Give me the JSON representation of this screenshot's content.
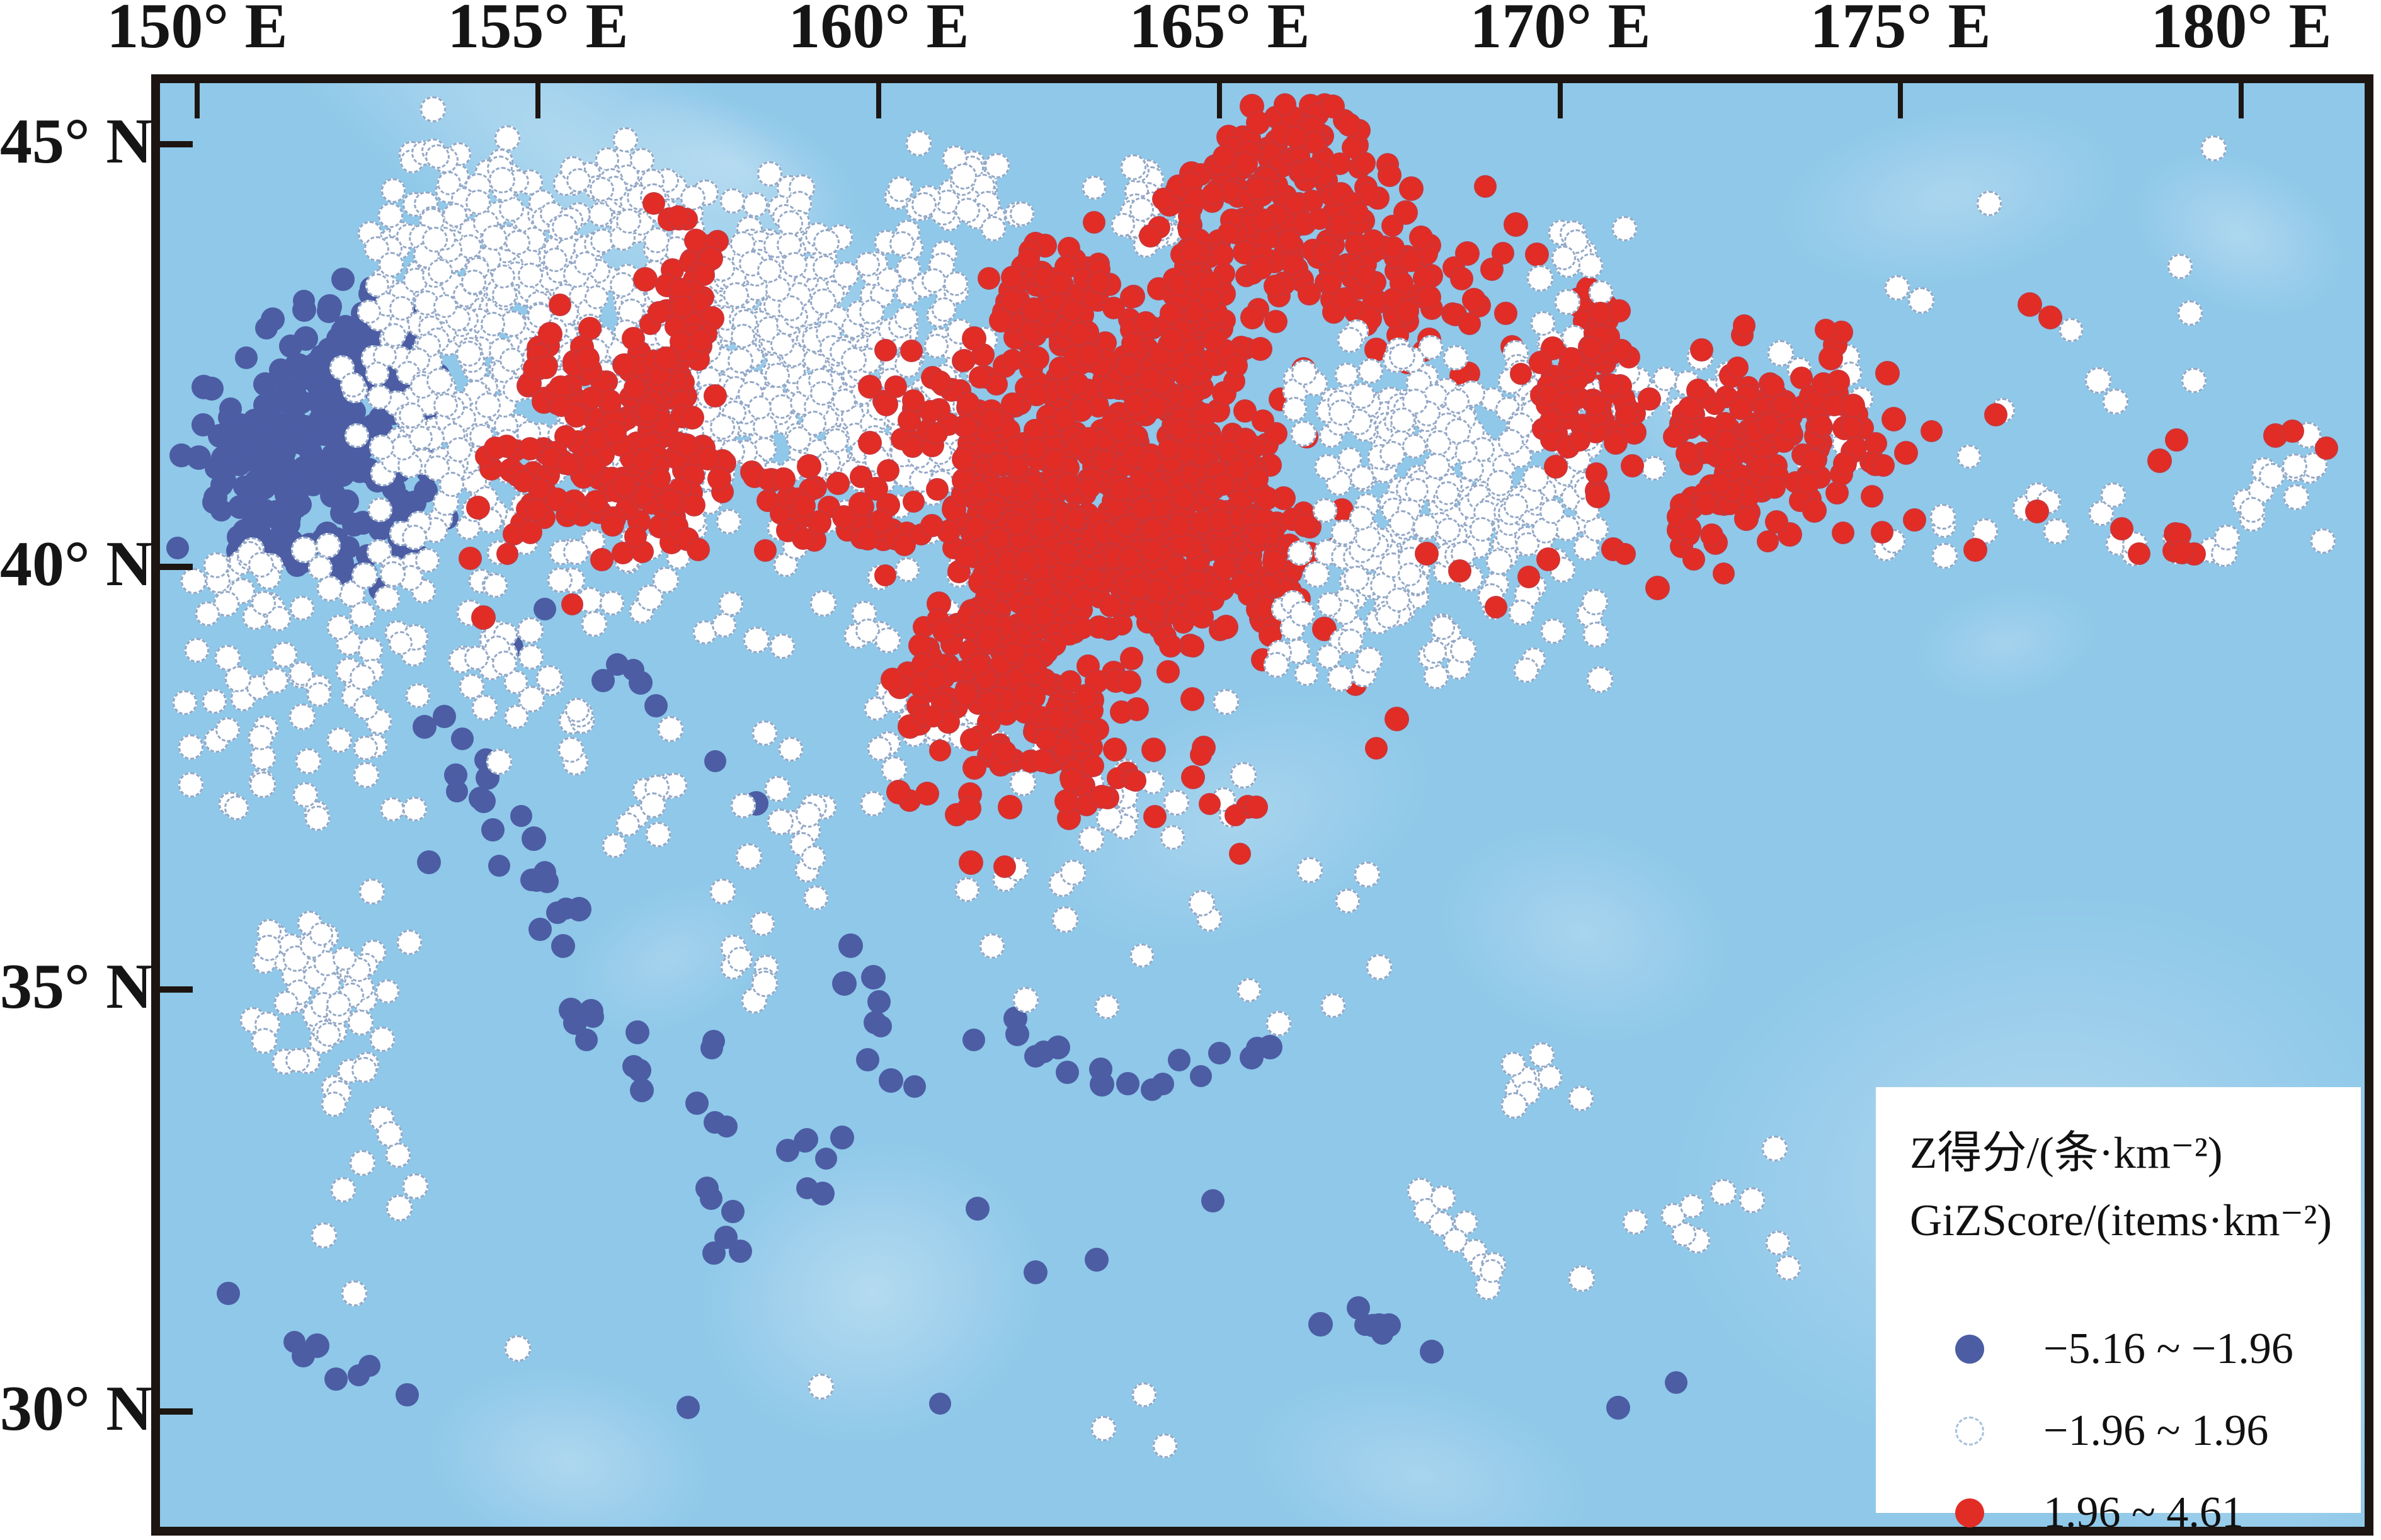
{
  "chart_data": {
    "type": "scatter",
    "subtype": "geographic-hotspot-map",
    "title": "",
    "x_axis": {
      "ticks": [
        150,
        155,
        160,
        165,
        170,
        175,
        180
      ],
      "tick_labels": [
        "150° E",
        "155° E",
        "160° E",
        "165° E",
        "170° E",
        "175° E",
        "180° E"
      ],
      "range": [
        149.45,
        181.81
      ],
      "position": "top",
      "grid": false
    },
    "y_axis": {
      "ticks": [
        45,
        40,
        35,
        30
      ],
      "tick_labels": [
        "45° N",
        "40° N",
        "35° N",
        "30° N"
      ],
      "range": [
        28.64,
        45.72
      ],
      "position": "left",
      "grid": false
    },
    "legend": {
      "position": "bottom-right",
      "title_lines": [
        "Z得分/(条·km⁻²)",
        "GiZScore/(items·km⁻²)"
      ],
      "entries": [
        {
          "category": "cold",
          "label": "−5.16 ~ −1.96",
          "color": "#4c5da4",
          "marker": "filled-circle"
        },
        {
          "category": "neutral",
          "label": "−1.96 ~ 1.96",
          "color": "#ffffff",
          "marker": "dashed-outline-circle"
        },
        {
          "category": "hot",
          "label": "1.96 ~ 4.61",
          "color": "#e12d26",
          "marker": "filled-circle"
        }
      ]
    },
    "layers": [
      {
        "category": "cold",
        "clusters": [
          [
            151.95,
            41.95,
            0.75,
            0.6,
            130
          ],
          [
            151.1,
            41.15,
            0.55,
            0.5,
            60
          ],
          [
            152.7,
            42.6,
            0.45,
            0.35,
            40
          ],
          [
            152.95,
            41.4,
            0.4,
            0.45,
            40
          ],
          [
            151.0,
            40.25,
            0.45,
            0.3,
            18
          ],
          [
            152.3,
            40.05,
            0.35,
            0.25,
            12
          ],
          [
            150.45,
            41.0,
            0.25,
            0.4,
            10
          ],
          [
            167.35,
            30.95,
            0.5,
            0.2,
            8
          ],
          [
            158.95,
            33.1,
            0.3,
            0.35,
            7
          ]
        ],
        "lines": [
          [
            153.6,
            38.2,
            154.35,
            37.2,
            9,
            0.15
          ],
          [
            154.6,
            36.9,
            155.4,
            35.3,
            13,
            0.2
          ],
          [
            155.5,
            34.9,
            156.4,
            33.9,
            9,
            0.18
          ],
          [
            157.55,
            34.2,
            157.8,
            31.6,
            11,
            0.15
          ],
          [
            159.5,
            35.5,
            160.3,
            33.7,
            9,
            0.2
          ],
          [
            161.9,
            34.6,
            163.7,
            33.75,
            9,
            0.12
          ],
          [
            163.95,
            33.9,
            165.8,
            34.4,
            8,
            0.12
          ],
          [
            151.3,
            30.85,
            152.75,
            30.25,
            7,
            0.1
          ],
          [
            156.0,
            38.9,
            156.65,
            38.5,
            5,
            0.12
          ]
        ],
        "points": [
          [
            161.4,
            34.4
          ],
          [
            161.45,
            32.4
          ],
          [
            162.3,
            31.65
          ],
          [
            163.2,
            31.8
          ],
          [
            164.9,
            32.5
          ],
          [
            160.9,
            30.1
          ],
          [
            157.2,
            30.05
          ],
          [
            150.45,
            31.4
          ],
          [
            155.1,
            39.5
          ],
          [
            154.6,
            39.05
          ],
          [
            157.6,
            37.7
          ],
          [
            158.2,
            37.2
          ],
          [
            170.85,
            30.05
          ],
          [
            171.7,
            30.35
          ],
          [
            153.4,
            36.5
          ]
        ]
      },
      {
        "category": "neutral",
        "clusters": [
          [
            154.2,
            43.1,
            0.7,
            0.85,
            130
          ],
          [
            155.8,
            43.0,
            0.75,
            0.85,
            130
          ],
          [
            157.3,
            42.7,
            0.6,
            0.8,
            115
          ],
          [
            158.7,
            42.5,
            0.6,
            0.7,
            105
          ],
          [
            159.8,
            42.0,
            0.55,
            0.6,
            85
          ],
          [
            160.8,
            41.6,
            0.4,
            0.5,
            45
          ],
          [
            156.6,
            41.3,
            1.0,
            0.45,
            75
          ],
          [
            154.0,
            41.4,
            0.6,
            0.5,
            55
          ],
          [
            153.6,
            44.0,
            0.45,
            0.5,
            48
          ],
          [
            156.2,
            44.35,
            0.5,
            0.3,
            38
          ],
          [
            158.3,
            43.6,
            0.5,
            0.45,
            48
          ],
          [
            161.2,
            44.35,
            0.5,
            0.3,
            32
          ],
          [
            163.9,
            44.15,
            0.35,
            0.3,
            22
          ],
          [
            160.4,
            43.3,
            0.4,
            0.4,
            28
          ],
          [
            153.2,
            42.3,
            0.35,
            0.6,
            38
          ],
          [
            150.55,
            39.9,
            0.3,
            0.25,
            12
          ],
          [
            151.75,
            35.1,
            0.55,
            0.45,
            52
          ],
          [
            154.4,
            38.8,
            0.5,
            0.35,
            18
          ],
          [
            163.4,
            37.25,
            0.25,
            0.2,
            6
          ],
          [
            169.9,
            33.95,
            0.3,
            0.25,
            9
          ],
          [
            158.9,
            36.9,
            0.5,
            0.4,
            12
          ],
          [
            158.3,
            35.3,
            0.4,
            0.3,
            8
          ],
          [
            152.8,
            32.6,
            0.4,
            0.3,
            6
          ]
        ],
        "boxes": [
          [
            149.8,
            37.0,
            153.2,
            40.3,
            70
          ],
          [
            152.8,
            39.0,
            161.5,
            40.55,
            60
          ],
          [
            154.2,
            37.6,
            155.7,
            38.7,
            10
          ],
          [
            156.1,
            36.6,
            157.1,
            37.45,
            8
          ],
          [
            156.5,
            36.5,
            160.5,
            38.5,
            10
          ],
          [
            163.0,
            34.5,
            167.5,
            37.6,
            20
          ],
          [
            170.3,
            31.5,
            175.5,
            33.2,
            10
          ],
          [
            160.8,
            34.8,
            163.0,
            36.5,
            8
          ],
          [
            159.8,
            37.4,
            162.6,
            38.6,
            16
          ]
        ],
        "lines": [
          [
            151.4,
            34.1,
            152.6,
            33.4,
            11,
            0.2
          ],
          [
            167.9,
            32.6,
            169.3,
            31.55,
            11,
            0.12
          ]
        ],
        "points": [
          [
            158.4,
            44.65
          ],
          [
            154.7,
            30.75
          ],
          [
            159.15,
            30.3
          ],
          [
            152.3,
            31.4
          ],
          [
            163.9,
            30.2
          ],
          [
            164.2,
            29.6
          ],
          [
            166.15,
            39.0
          ],
          [
            165.1,
            38.4
          ],
          [
            163.3,
            29.8
          ]
        ]
      },
      {
        "category": "hot",
        "clusters": [
          [
            157.25,
            43.25,
            0.22,
            0.45,
            38
          ],
          [
            156.8,
            42.4,
            0.35,
            0.4,
            42
          ],
          [
            156.1,
            41.5,
            0.55,
            0.5,
            85
          ],
          [
            155.3,
            42.35,
            0.3,
            0.3,
            28
          ],
          [
            156.9,
            40.85,
            0.45,
            0.3,
            38
          ],
          [
            154.9,
            41.0,
            0.4,
            0.3,
            28
          ],
          [
            158.9,
            40.75,
            0.4,
            0.3,
            26
          ],
          [
            159.9,
            40.5,
            0.35,
            0.25,
            18
          ],
          [
            160.3,
            41.9,
            0.3,
            0.35,
            14
          ],
          [
            163.3,
            41.6,
            0.95,
            0.75,
            185
          ],
          [
            162.4,
            40.3,
            0.75,
            0.65,
            160
          ],
          [
            163.9,
            40.0,
            0.75,
            0.6,
            140
          ],
          [
            161.9,
            38.9,
            0.55,
            0.55,
            105
          ],
          [
            162.9,
            38.0,
            0.45,
            0.4,
            65
          ],
          [
            164.9,
            40.9,
            0.6,
            0.55,
            95
          ],
          [
            165.7,
            40.0,
            0.5,
            0.45,
            55
          ],
          [
            164.4,
            42.4,
            0.6,
            0.45,
            85
          ],
          [
            162.6,
            42.95,
            0.55,
            0.4,
            65
          ],
          [
            161.5,
            41.4,
            0.45,
            0.6,
            65
          ],
          [
            162.3,
            43.6,
            0.3,
            0.25,
            16
          ],
          [
            160.8,
            38.7,
            0.35,
            0.35,
            30
          ],
          [
            166.1,
            45.1,
            0.5,
            0.3,
            35
          ],
          [
            165.9,
            44.5,
            0.8,
            0.45,
            110
          ],
          [
            165.0,
            43.7,
            0.45,
            0.35,
            45
          ],
          [
            166.9,
            43.6,
            0.55,
            0.4,
            55
          ],
          [
            168.2,
            43.3,
            0.5,
            0.4,
            38
          ],
          [
            165.5,
            37.15,
            0.12,
            0.1,
            3
          ]
        ],
        "boxes": [
          [
            160.2,
            36.9,
            165.3,
            37.9,
            18
          ]
        ],
        "lines": [
          [
            170.35,
            43.3,
            170.8,
            41.6,
            30,
            0.18
          ]
        ],
        "points": [
          [
            156.7,
            44.3
          ],
          [
            154.0,
            40.1
          ],
          [
            154.55,
            40.15
          ],
          [
            157.35,
            40.2
          ],
          [
            161.35,
            36.5
          ],
          [
            161.85,
            36.45
          ],
          [
            168.9,
            44.5
          ],
          [
            169.35,
            44.05
          ],
          [
            169.2,
            43.0
          ],
          [
            167.0,
            38.6
          ],
          [
            167.6,
            38.2
          ],
          [
            167.3,
            37.85
          ],
          [
            154.2,
            39.4
          ],
          [
            155.5,
            39.55
          ]
        ]
      },
      {
        "category": "neutral",
        "clusters": [
          [
            167.6,
            41.6,
            0.7,
            0.5,
            100
          ],
          [
            168.5,
            40.5,
            0.65,
            0.55,
            90
          ],
          [
            167.2,
            39.8,
            0.45,
            0.45,
            50
          ],
          [
            169.6,
            41.95,
            0.45,
            0.35,
            38
          ],
          [
            169.95,
            40.95,
            0.4,
            0.4,
            32
          ],
          [
            170.3,
            43.45,
            0.3,
            0.4,
            14
          ],
          [
            180.9,
            41.35,
            0.25,
            0.2,
            6
          ]
        ],
        "boxes": [
          [
            165.8,
            38.6,
            170.6,
            39.6,
            26
          ],
          [
            170.8,
            41.0,
            174.8,
            42.6,
            32
          ]
        ],
        "lines": [
          [
            174.8,
            40.35,
            177.6,
            40.75,
            10,
            0.18
          ],
          [
            177.8,
            40.5,
            179.6,
            40.15,
            9,
            0.15
          ],
          [
            179.8,
            40.35,
            180.5,
            41.05,
            7,
            0.12
          ]
        ],
        "points": [
          [
            176.3,
            44.3
          ],
          [
            179.3,
            42.2
          ],
          [
            179.1,
            43.55
          ],
          [
            179.25,
            43.0
          ],
          [
            177.5,
            42.8
          ],
          [
            177.9,
            42.2
          ],
          [
            178.15,
            41.95
          ],
          [
            179.6,
            44.95
          ],
          [
            174.95,
            43.3
          ],
          [
            175.3,
            43.15
          ],
          [
            176.5,
            41.85
          ],
          [
            176.0,
            41.3
          ],
          [
            181.2,
            40.3
          ],
          [
            172.4,
            32.6
          ],
          [
            173.2,
            32.0
          ],
          [
            171.1,
            32.25
          ]
        ]
      },
      {
        "category": "hot",
        "clusters": [
          [
            170.3,
            41.95,
            0.45,
            0.5,
            55
          ],
          [
            172.7,
            41.5,
            0.65,
            0.5,
            100
          ],
          [
            173.9,
            41.6,
            0.5,
            0.45,
            60
          ],
          [
            172.2,
            40.6,
            0.4,
            0.3,
            22
          ],
          [
            179.2,
            40.1,
            0.15,
            0.15,
            5
          ]
        ],
        "boxes": [],
        "lines": [
          [
            167.9,
            39.85,
            171.3,
            40.35,
            8,
            0.22
          ]
        ],
        "points": [
          [
            172.7,
            42.85
          ],
          [
            173.9,
            42.8
          ],
          [
            175.45,
            41.6
          ],
          [
            171.9,
            40.45
          ],
          [
            173.05,
            40.3
          ],
          [
            174.15,
            40.4
          ],
          [
            175.2,
            40.55
          ],
          [
            176.1,
            40.2
          ],
          [
            177.0,
            40.65
          ],
          [
            178.25,
            40.45
          ],
          [
            178.5,
            40.15
          ],
          [
            180.5,
            41.55
          ],
          [
            180.75,
            41.6
          ],
          [
            181.25,
            41.4
          ],
          [
            178.8,
            41.25
          ],
          [
            179.05,
            41.5
          ],
          [
            176.4,
            41.8
          ],
          [
            176.9,
            43.1
          ],
          [
            177.2,
            42.95
          ],
          [
            165.3,
            36.6
          ]
        ]
      }
    ]
  },
  "colors": {
    "ocean": "#8fc8e9",
    "shallow_patch": "#bfe1f3",
    "cold": "#4c5da4",
    "hot": "#e12d26",
    "neutral_fill": "#ffffff",
    "neutral_stroke": "#94a8c6",
    "frame": "#1d1511",
    "text": "#151515"
  }
}
